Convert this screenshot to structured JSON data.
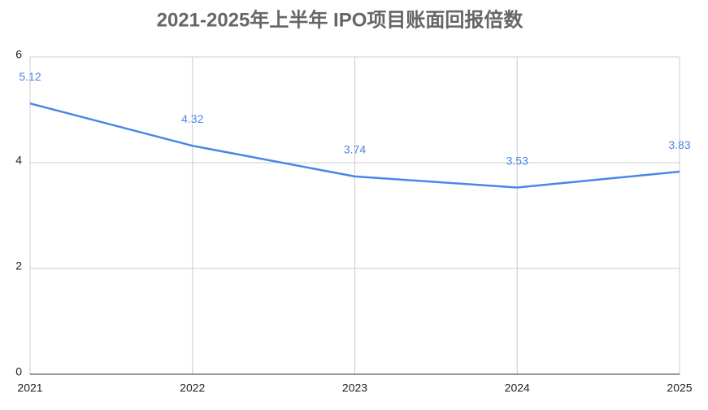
{
  "chart_data": {
    "type": "line",
    "title": "2021-2025年上半年 IPO项目账面回报倍数",
    "x": [
      2021,
      2022,
      2023,
      2024,
      2025
    ],
    "series": [
      {
        "color": "#4a86e8",
        "values": [
          5.12,
          4.32,
          3.74,
          3.53,
          3.83
        ]
      }
    ],
    "xlim": [
      2021,
      2025
    ],
    "xticks": [
      2021,
      2022,
      2023,
      2024,
      2025
    ],
    "ylim": [
      0,
      6
    ],
    "yticks": [
      0,
      2,
      4,
      6
    ],
    "grid": true,
    "data_labels": true
  }
}
